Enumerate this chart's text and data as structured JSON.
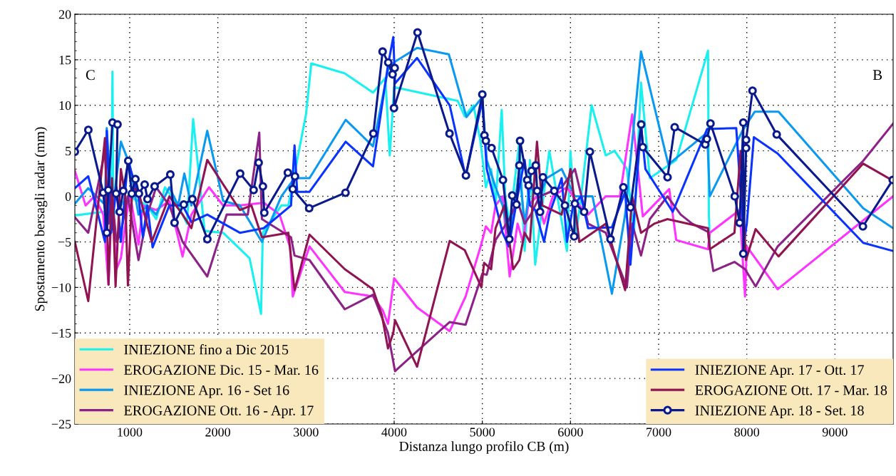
{
  "chart_data": {
    "type": "line",
    "xlabel": "Distanza lungo profilo CB (m)",
    "ylabel": "Spostamento bersagli radar (mm)",
    "xlim": [
      378,
      9660
    ],
    "ylim": [
      -25,
      20
    ],
    "xticks": [
      1000,
      2000,
      3000,
      4000,
      5000,
      6000,
      7000,
      8000,
      9000
    ],
    "yticks": [
      {
        "value": -25,
        "label": "−25"
      },
      {
        "value": -20,
        "label": "−20"
      },
      {
        "value": -15,
        "label": "−15"
      },
      {
        "value": -10,
        "label": "−10"
      },
      {
        "value": -5,
        "label": "−5"
      },
      0,
      5,
      10,
      15,
      20
    ],
    "grid": true,
    "legend": "bottom",
    "line_style": "solid",
    "annotations": [
      "C",
      "B"
    ],
    "series": [
      {
        "name": "INIEZIONE fino a Dic 2015",
        "color": "#19f0f0",
        "marker": "none",
        "x": [
          378,
          700,
          790,
          805,
          815,
          900,
          980,
          1100,
          1200,
          1300,
          1400,
          1550,
          1650,
          1720,
          1850,
          2060,
          2360,
          2490,
          2510,
          2720,
          2800,
          2900,
          3000,
          3060,
          3440,
          3760,
          3900,
          3950,
          4000,
          4720,
          4800,
          4900,
          4980,
          5040,
          5100,
          5150,
          5220,
          5260,
          5310,
          5420,
          5480,
          5540,
          5600,
          5680,
          5760,
          5850,
          5960,
          6000,
          6060,
          6120,
          6240,
          6400,
          6500,
          6640,
          6720,
          6800,
          6900,
          7200,
          7560,
          7570,
          7580
        ],
        "values": [
          -2.1,
          -1.7,
          -1.7,
          13.7,
          -2,
          -1,
          0,
          -0.5,
          -1,
          -2.5,
          1,
          -1,
          -3,
          8.5,
          -3.8,
          -4,
          -6.8,
          -12.9,
          -4,
          -1,
          -1,
          4,
          9,
          14.6,
          13.5,
          11.4,
          13,
          4.5,
          12,
          10.5,
          8.8,
          10,
          6,
          1,
          3,
          -1,
          9.5,
          0,
          -3,
          6,
          -6,
          4,
          -7.5,
          -1,
          5,
          0,
          -6,
          5,
          -4.5,
          0,
          10,
          4.5,
          5,
          3,
          -4,
          12.5,
          2,
          4,
          16,
          -2,
          -5
        ]
      },
      {
        "name": "EROGAZIONE Dic. 15 - Mar. 16",
        "color": "#ff33ff",
        "marker": "none",
        "x": [
          378,
          500,
          600,
          700,
          760,
          800,
          850,
          900,
          1000,
          1100,
          1150,
          1300,
          1450,
          1600,
          1700,
          1900,
          2060,
          2250,
          2520,
          2700,
          2820,
          2850,
          3040,
          3440,
          3760,
          3870,
          3930,
          4000,
          4260,
          4630,
          4810,
          4990,
          5040,
          5100,
          5150,
          5230,
          5310,
          5400,
          5460,
          5520,
          5620,
          5700,
          5800,
          5960,
          6100,
          6200,
          6400,
          6560,
          6700,
          6820,
          7120,
          7200,
          7560,
          7580,
          7920,
          7980,
          8000,
          8350,
          9660
        ],
        "values": [
          2.8,
          -1,
          0,
          -2,
          -9.7,
          0,
          -8,
          -6.8,
          0.5,
          -5.3,
          -1,
          -1.5,
          -0.5,
          -6.6,
          -2,
          1,
          -1,
          -1,
          -0.7,
          -2,
          -5.6,
          -11,
          -5.5,
          -10.5,
          -11,
          -12.5,
          -14,
          -9,
          -12.2,
          -14.8,
          -11,
          -5.2,
          -3.3,
          -4,
          -1,
          0,
          -8.8,
          -3,
          -5,
          -1,
          0,
          -3,
          0,
          1,
          -1,
          -2,
          0,
          0,
          9,
          -2.2,
          0.8,
          -4.8,
          -5.8,
          -4,
          -1.5,
          -11,
          -5.5,
          -10.2,
          0
        ]
      },
      {
        "name": "INIEZIONE Apr. 16 - Set 16",
        "color": "#0a99f0",
        "marker": "none",
        "x": [
          378,
          530,
          720,
          740,
          800,
          900,
          1000,
          1100,
          1200,
          1300,
          1450,
          1550,
          1620,
          1700,
          1880,
          2060,
          2250,
          2500,
          2720,
          2870,
          3040,
          3450,
          3760,
          3930,
          4010,
          4260,
          4620,
          4820,
          5000,
          5050,
          5150,
          5230,
          5310,
          5420,
          5480,
          5540,
          5650,
          5730,
          5900,
          6050,
          6250,
          6470,
          6620,
          6800,
          7110,
          7550,
          7580,
          7950,
          8090,
          8360,
          9320,
          9660
        ],
        "values": [
          -0.8,
          0.9,
          -0.9,
          7.5,
          -2,
          6,
          3.5,
          -2,
          -1,
          -2,
          1,
          -1,
          2.5,
          -1,
          7.2,
          -0.5,
          -1,
          -5,
          0,
          2,
          2,
          8.4,
          5.5,
          13.9,
          14.8,
          16.3,
          15.6,
          8.7,
          10.9,
          4,
          1,
          -1,
          -5,
          3,
          -3,
          1,
          0,
          2,
          3,
          0,
          0,
          -10.7,
          -2,
          15.9,
          3.5,
          7,
          0,
          7.2,
          9.3,
          9.3,
          -1.3,
          -3.5
        ]
      },
      {
        "name": "EROGAZIONE Ott. 16 - Apr. 17",
        "color": "#8c2288",
        "marker": "none",
        "x": [
          378,
          530,
          720,
          760,
          800,
          850,
          900,
          980,
          1100,
          1200,
          1300,
          1450,
          1600,
          1880,
          2100,
          2340,
          2470,
          2500,
          2830,
          2870,
          3040,
          3440,
          3760,
          3930,
          4010,
          4260,
          4630,
          4810,
          5000,
          5050,
          5150,
          5300,
          5400,
          5480,
          5550,
          5650,
          5900,
          6050,
          6200,
          6400,
          6640,
          6700,
          6800,
          6900,
          7100,
          7250,
          7380,
          7560,
          7580,
          7620,
          7860,
          7980,
          8100,
          8350,
          9320,
          9660
        ],
        "values": [
          -2.3,
          -4,
          5,
          -3,
          0,
          -5,
          -4,
          0,
          -7,
          -2,
          1,
          -1,
          -5,
          -8.8,
          -2,
          -2,
          7,
          -2.5,
          -4.5,
          -6.5,
          -7,
          -12.4,
          -10.8,
          -15,
          -19.2,
          -17,
          -13.8,
          -14.1,
          -8.5,
          -8.6,
          -4.8,
          -2.6,
          -0.5,
          -3,
          -2,
          0,
          1,
          3,
          -3,
          -4,
          -10,
          -3,
          -6.5,
          -2.5,
          0,
          -2,
          -3,
          -3.9,
          -5.7,
          -8.2,
          -7.2,
          -8,
          -9.9,
          -5.5,
          3.9,
          8
        ]
      },
      {
        "name": "INIEZIONE Apr. 17 - Ott. 17",
        "color": "#0a33ff",
        "marker": "none",
        "x": [
          378,
          530,
          720,
          740,
          790,
          850,
          900,
          980,
          1100,
          1150,
          1200,
          1260,
          1450,
          1600,
          1700,
          1880,
          2250,
          2520,
          2830,
          2870,
          2900,
          3040,
          3450,
          3760,
          3930,
          3990,
          4010,
          4260,
          4630,
          4810,
          5000,
          5050,
          5230,
          5300,
          5400,
          5480,
          5540,
          5600,
          5700,
          5760,
          5900,
          5960,
          6030,
          6120,
          6200,
          6470,
          6620,
          6680,
          6800,
          6850,
          7160,
          7550,
          7880,
          7970,
          8000,
          8080,
          8350,
          9320,
          9660
        ],
        "values": [
          0.9,
          2.2,
          -5,
          7.2,
          -4,
          1,
          -5,
          4,
          0,
          -4.5,
          -1,
          -5.6,
          -1,
          -1,
          -2.8,
          -2,
          -4,
          -3.5,
          -1,
          5.6,
          0.5,
          0.5,
          6,
          3.3,
          14.4,
          17.5,
          12.4,
          15.2,
          10,
          2.2,
          10.5,
          3,
          -4,
          -5.5,
          0,
          4,
          -1,
          -1.5,
          -5,
          -2,
          2,
          -5,
          -1,
          0,
          -3.5,
          -3.4,
          0.5,
          -7.5,
          7.8,
          3,
          -1.7,
          7.4,
          7.5,
          -5,
          -3,
          6.5,
          4.7,
          -5.1,
          -6
        ]
      },
      {
        "name": "EROGAZIONE Ott. 17 - Mar. 18",
        "color": "#8f1451",
        "marker": "none",
        "x": [
          378,
          530,
          720,
          760,
          800,
          840,
          900,
          950,
          980,
          1030,
          1100,
          1250,
          1450,
          1600,
          1700,
          1880,
          2250,
          2380,
          2500,
          2800,
          2870,
          3040,
          3440,
          3760,
          3860,
          3930,
          3990,
          4010,
          4260,
          4630,
          4800,
          4990,
          5020,
          5100,
          5150,
          5250,
          5350,
          5420,
          5480,
          5540,
          5620,
          5680,
          5900,
          6000,
          6100,
          6400,
          6620,
          6700,
          6800,
          6950,
          7100,
          7560,
          7580,
          7860,
          7930,
          7990,
          8100,
          8360,
          9320,
          9660
        ],
        "values": [
          -5,
          -11.5,
          6.4,
          -9.7,
          2,
          -9.9,
          3,
          0,
          -9.8,
          1,
          0.5,
          -5,
          0,
          -2,
          -3.5,
          4,
          -1.5,
          -1,
          -4.5,
          -4,
          -10.3,
          -4.2,
          -8,
          -10.2,
          -13,
          -16.7,
          -15,
          -13.6,
          -18.7,
          -4.9,
          -5.9,
          -10,
          -7.3,
          -8,
          -3.5,
          -1,
          -8,
          -7,
          -4,
          -5,
          6,
          -1,
          -2,
          3,
          -5,
          -3,
          -10.3,
          0,
          -4,
          -3,
          -2.5,
          -3.5,
          -5.8,
          -4,
          5,
          -7,
          -3.6,
          -6.6,
          3.6,
          1.7
        ]
      },
      {
        "name": "INIEZIONE Apr. 18 - Set. 18",
        "color": "#0a1a8c",
        "marker": "circle",
        "x": [
          378,
          531,
          700,
          741,
          757,
          805,
          862,
          846,
          887,
          927,
          984,
          1024,
          1065,
          1105,
          1170,
          1202,
          1283,
          1461,
          1509,
          1614,
          1711,
          1881,
          2253,
          2406,
          2463,
          2511,
          2527,
          2794,
          2875,
          2850,
          3036,
          3448,
          3764,
          3869,
          3933,
          3982,
          4006,
          3998,
          4265,
          4628,
          4814,
          5000,
          5024,
          5040,
          5105,
          5234,
          5307,
          5339,
          5388,
          5420,
          5428,
          5509,
          5525,
          5558,
          5606,
          5622,
          5655,
          5687,
          5816,
          5937,
          6042,
          6050,
          6155,
          6220,
          6454,
          6600,
          6681,
          6802,
          6820,
          7101,
          7182,
          7529,
          7547,
          7588,
          7863,
          7919,
          7960,
          7960,
          7992,
          7992,
          8065,
          8339,
          9317,
          9655
        ],
        "values": [
          4.9,
          7.3,
          0.4,
          -4.0,
          0.7,
          8.1,
          7.9,
          0.3,
          -1.7,
          0.6,
          3.9,
          0.3,
          1.9,
          0.3,
          1.3,
          -0.3,
          1.1,
          2.4,
          -2.9,
          -0.9,
          -0.3,
          -4.7,
          2.5,
          0.7,
          3.7,
          1.1,
          -1.8,
          2.6,
          2.2,
          0.8,
          -1.3,
          0.4,
          6.9,
          15.9,
          14.7,
          13.4,
          14.1,
          9.7,
          18.0,
          6.9,
          2.3,
          11.2,
          6.7,
          6.1,
          5.3,
          1.8,
          -4.7,
          0.1,
          -0.9,
          3.4,
          6.1,
          1.8,
          1.2,
          2.8,
          3.4,
          0.6,
          -1.7,
          2.1,
          0.6,
          -1.0,
          -4.4,
          -0.8,
          -1.7,
          4.9,
          -4.7,
          1.0,
          -1.2,
          7.9,
          5.4,
          2.1,
          7.6,
          5.7,
          6.3,
          8.0,
          0.0,
          -2.9,
          8.1,
          -6.3,
          5.3,
          6.2,
          11.6,
          6.8,
          -3.3,
          1.8
        ]
      }
    ]
  }
}
